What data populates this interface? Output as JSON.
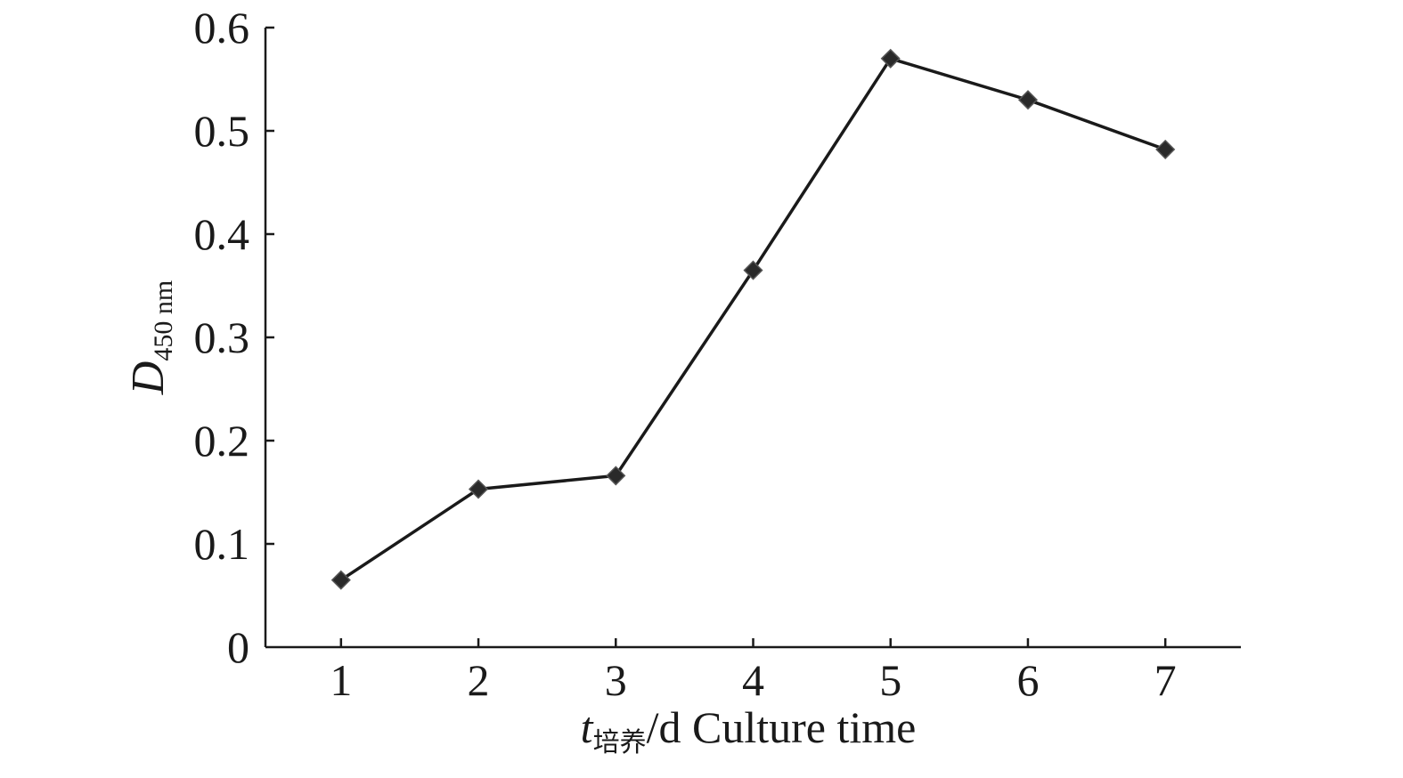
{
  "chart_data": {
    "type": "line",
    "title": "",
    "x": [
      1,
      2,
      3,
      4,
      5,
      6,
      7
    ],
    "series": [
      {
        "values": [
          0.065,
          0.153,
          0.166,
          0.365,
          0.57,
          0.53,
          0.482
        ]
      }
    ],
    "xlabel": {
      "main": "t",
      "sub": "培养",
      "unit": "/d  Culture time"
    },
    "ylabel": {
      "main": "D",
      "sub": "450 nm"
    },
    "xticks": [
      "1",
      "2",
      "3",
      "4",
      "5",
      "6",
      "7"
    ],
    "yticks": [
      "0",
      "0.1",
      "0.2",
      "0.3",
      "0.4",
      "0.5",
      "0.6"
    ],
    "xlim": [
      0.45,
      7.55
    ],
    "ylim": [
      0,
      0.6
    ],
    "grid": false,
    "marker": "diamond",
    "line_color": "#1a1a1a",
    "marker_color": "#2a2a2a"
  }
}
